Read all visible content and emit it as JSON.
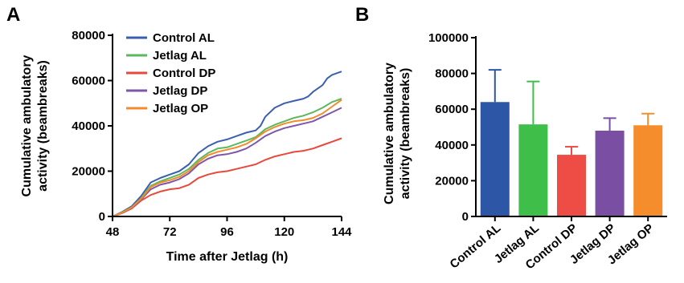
{
  "panels": {
    "a": "A",
    "b": "B"
  },
  "chart_data": [
    {
      "type": "line",
      "panel": "A",
      "xlabel": "Time after Jetlag (h)",
      "ylabel_lines": [
        "Cumulative ambulatory",
        "activity (beambreaks)"
      ],
      "xlim": [
        48,
        144
      ],
      "ylim": [
        0,
        80000
      ],
      "xticks": [
        48,
        72,
        96,
        120,
        144
      ],
      "yticks": [
        0,
        20000,
        40000,
        60000,
        80000
      ],
      "legend_position": "top-left",
      "grid": false,
      "series": [
        {
          "name": "Control AL",
          "color": "#3a5fb0",
          "x": [
            48,
            52,
            56,
            60,
            62,
            64,
            68,
            72,
            76,
            80,
            84,
            88,
            92,
            96,
            100,
            104,
            108,
            110,
            112,
            116,
            120,
            124,
            128,
            130,
            132,
            136,
            138,
            140,
            144
          ],
          "y": [
            0,
            2000,
            4500,
            9000,
            12000,
            15000,
            17000,
            18500,
            20000,
            23000,
            28000,
            31000,
            33000,
            34000,
            35500,
            37000,
            38000,
            40000,
            44000,
            48000,
            50000,
            51000,
            52000,
            53000,
            55000,
            58000,
            61000,
            62500,
            64000
          ]
        },
        {
          "name": "Jetlag AL",
          "color": "#5cb85c",
          "x": [
            48,
            52,
            56,
            60,
            62,
            64,
            68,
            72,
            76,
            80,
            84,
            88,
            92,
            96,
            100,
            104,
            108,
            112,
            116,
            120,
            124,
            128,
            132,
            136,
            140,
            144
          ],
          "y": [
            0,
            1800,
            4000,
            8000,
            11000,
            13500,
            15500,
            17000,
            18500,
            21000,
            25000,
            28000,
            30000,
            30500,
            32000,
            33500,
            35000,
            38500,
            40500,
            42000,
            43500,
            44500,
            46000,
            48000,
            50500,
            52000
          ]
        },
        {
          "name": "Control DP",
          "color": "#e8493a",
          "x": [
            48,
            52,
            56,
            60,
            64,
            68,
            72,
            76,
            80,
            84,
            88,
            92,
            96,
            100,
            104,
            108,
            112,
            116,
            120,
            124,
            128,
            132,
            136,
            140,
            144
          ],
          "y": [
            0,
            1500,
            3500,
            7000,
            9500,
            11000,
            12000,
            12500,
            14000,
            17000,
            18500,
            19500,
            20000,
            21000,
            22000,
            23000,
            25000,
            26500,
            27500,
            28500,
            29000,
            30000,
            31500,
            33000,
            34500
          ]
        },
        {
          "name": "Jetlag DP",
          "color": "#7f56a8",
          "x": [
            48,
            52,
            56,
            60,
            64,
            68,
            72,
            76,
            80,
            84,
            88,
            92,
            96,
            100,
            104,
            108,
            112,
            116,
            120,
            124,
            128,
            132,
            136,
            140,
            144
          ],
          "y": [
            0,
            1600,
            3800,
            7500,
            12000,
            14000,
            15000,
            16500,
            19000,
            23000,
            25500,
            27000,
            27500,
            28500,
            30000,
            32500,
            35500,
            37500,
            39000,
            40000,
            41000,
            42000,
            44000,
            46000,
            48000
          ]
        },
        {
          "name": "Jetlag OP",
          "color": "#f38a2c",
          "x": [
            48,
            52,
            56,
            60,
            64,
            68,
            72,
            76,
            80,
            84,
            88,
            92,
            96,
            100,
            104,
            108,
            112,
            116,
            120,
            124,
            128,
            132,
            136,
            140,
            144
          ],
          "y": [
            0,
            1700,
            4000,
            7800,
            13000,
            15000,
            16000,
            17500,
            20000,
            24000,
            27000,
            28500,
            29500,
            30500,
            32000,
            34500,
            37500,
            39500,
            41000,
            42000,
            42500,
            43500,
            45500,
            48500,
            51500
          ]
        }
      ]
    },
    {
      "type": "bar",
      "panel": "B",
      "ylabel_lines": [
        "Cumulative ambulatory",
        "activity (beambreaks)"
      ],
      "ylim": [
        0,
        100000
      ],
      "yticks": [
        0,
        20000,
        40000,
        60000,
        80000,
        100000
      ],
      "grid": false,
      "categories": [
        "Control AL",
        "Jetlag AL",
        "Control DP",
        "Jetlag DP",
        "Jetlag OP"
      ],
      "values": [
        64000,
        51500,
        34500,
        48000,
        51000
      ],
      "errors": [
        18000,
        24000,
        4500,
        7000,
        6500
      ],
      "colors": [
        "#2e56a6",
        "#3fbf4a",
        "#ee4d45",
        "#7a4ea3",
        "#f58d2c"
      ]
    }
  ]
}
